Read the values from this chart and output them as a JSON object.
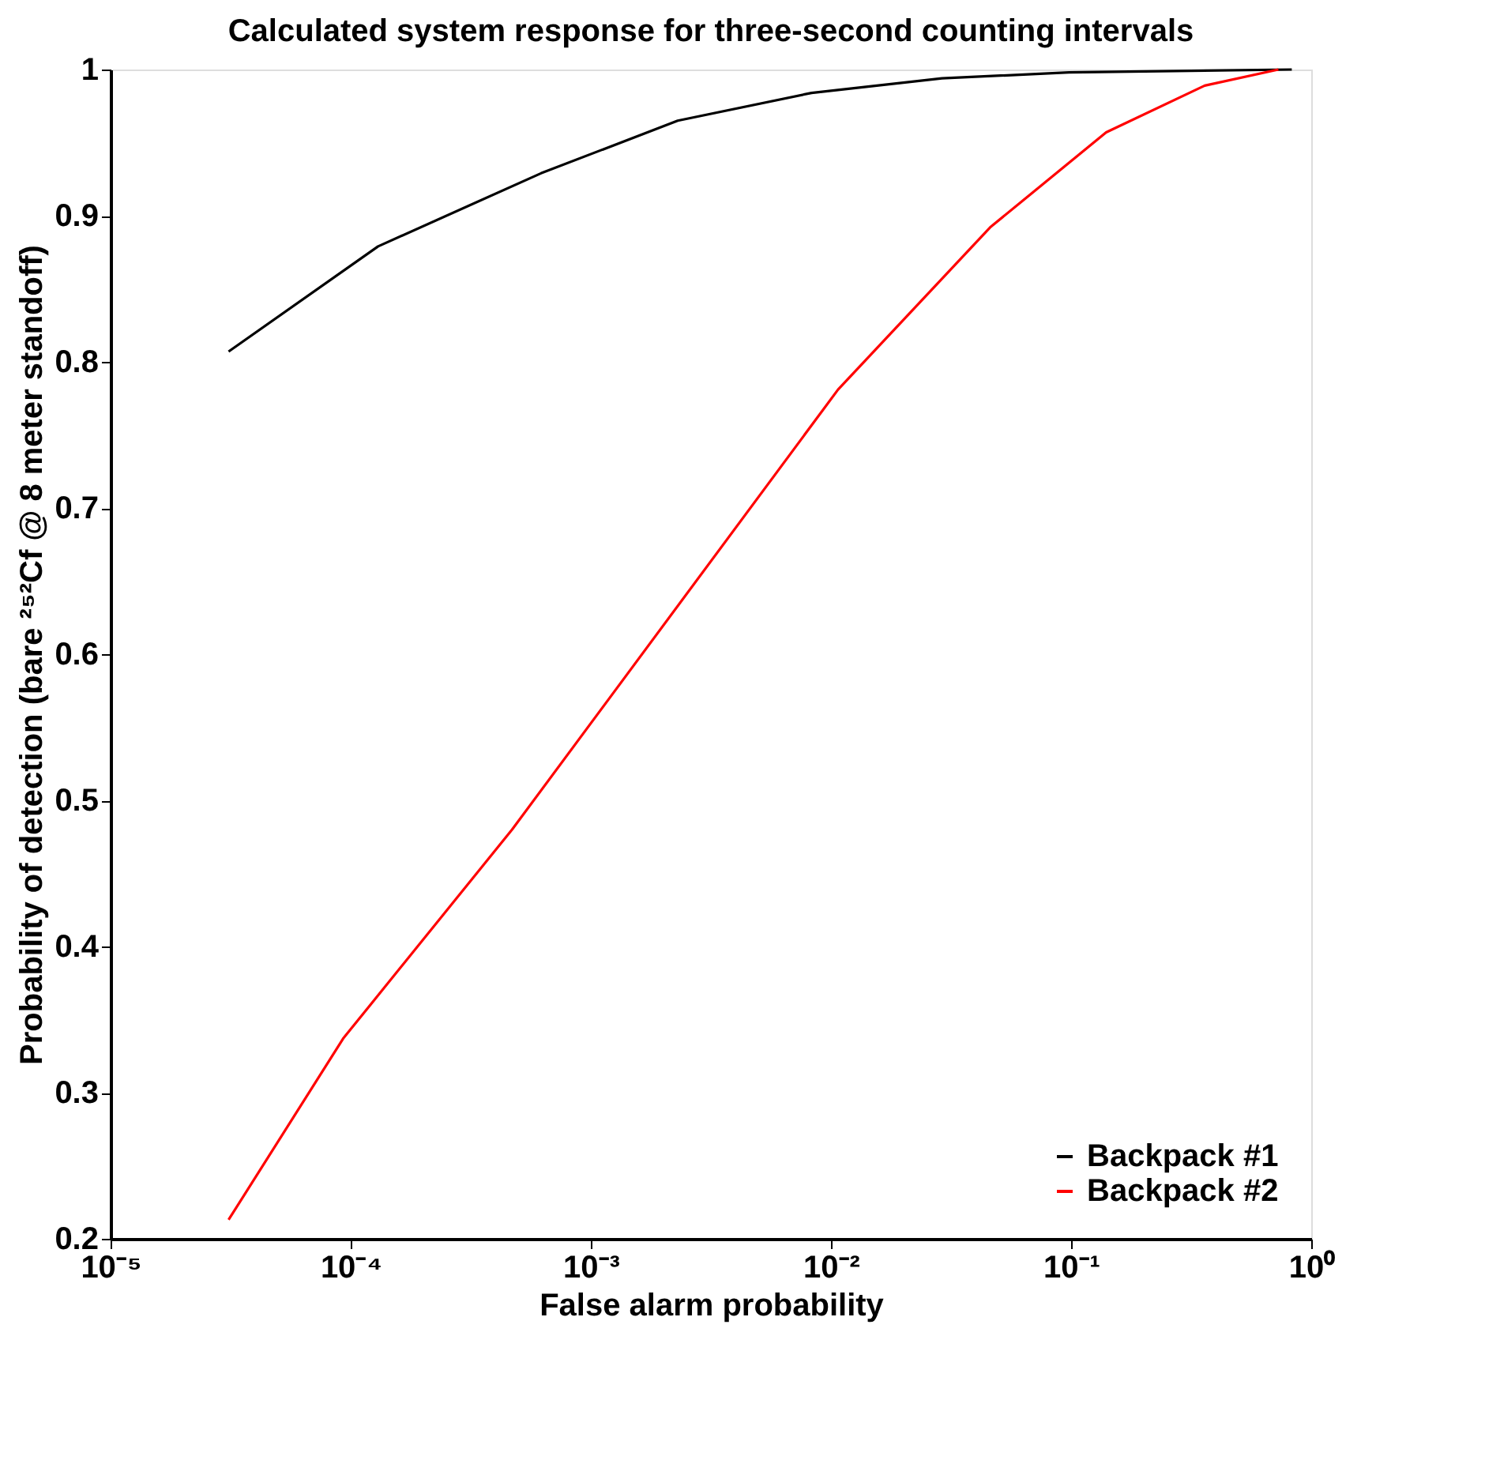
{
  "chart_data": {
    "type": "line",
    "title": "Calculated system response for three-second counting intervals",
    "xlabel": "False alarm probability",
    "ylabel": "Probability of detection (bare ²⁵²Cf @ 8 meter standoff)",
    "log": "x",
    "xlim": [
      1e-05,
      1
    ],
    "ylim": [
      0.2,
      1
    ],
    "xticks": [
      {
        "value": 1e-05,
        "label": "10⁻⁵"
      },
      {
        "value": 0.0001,
        "label": "10⁻⁴"
      },
      {
        "value": 0.001,
        "label": "10⁻³"
      },
      {
        "value": 0.01,
        "label": "10⁻²"
      },
      {
        "value": 0.1,
        "label": "10⁻¹"
      },
      {
        "value": 1,
        "label": "10⁰"
      }
    ],
    "yticks": [
      0.2,
      0.3,
      0.4,
      0.5,
      0.6,
      0.7,
      0.8,
      0.9,
      1
    ],
    "grid": false,
    "legend": "bottom right",
    "marker": "none",
    "line_style": "solid",
    "series": [
      {
        "name": "Backpack #1",
        "color": "#000000",
        "x": [
          3.1e-05,
          0.00013,
          0.00062,
          0.0023,
          0.0083,
          0.029,
          0.098,
          0.83
        ],
        "values": [
          0.807,
          0.879,
          0.929,
          0.965,
          0.984,
          0.994,
          0.998,
          1.0
        ]
      },
      {
        "name": "Backpack #2",
        "color": "#ff0000",
        "x": [
          3.1e-05,
          9.3e-05,
          0.00047,
          0.0107,
          0.046,
          0.14,
          0.36,
          0.73
        ],
        "values": [
          0.213,
          0.337,
          0.48,
          0.781,
          0.892,
          0.957,
          0.989,
          1.0
        ]
      }
    ]
  }
}
